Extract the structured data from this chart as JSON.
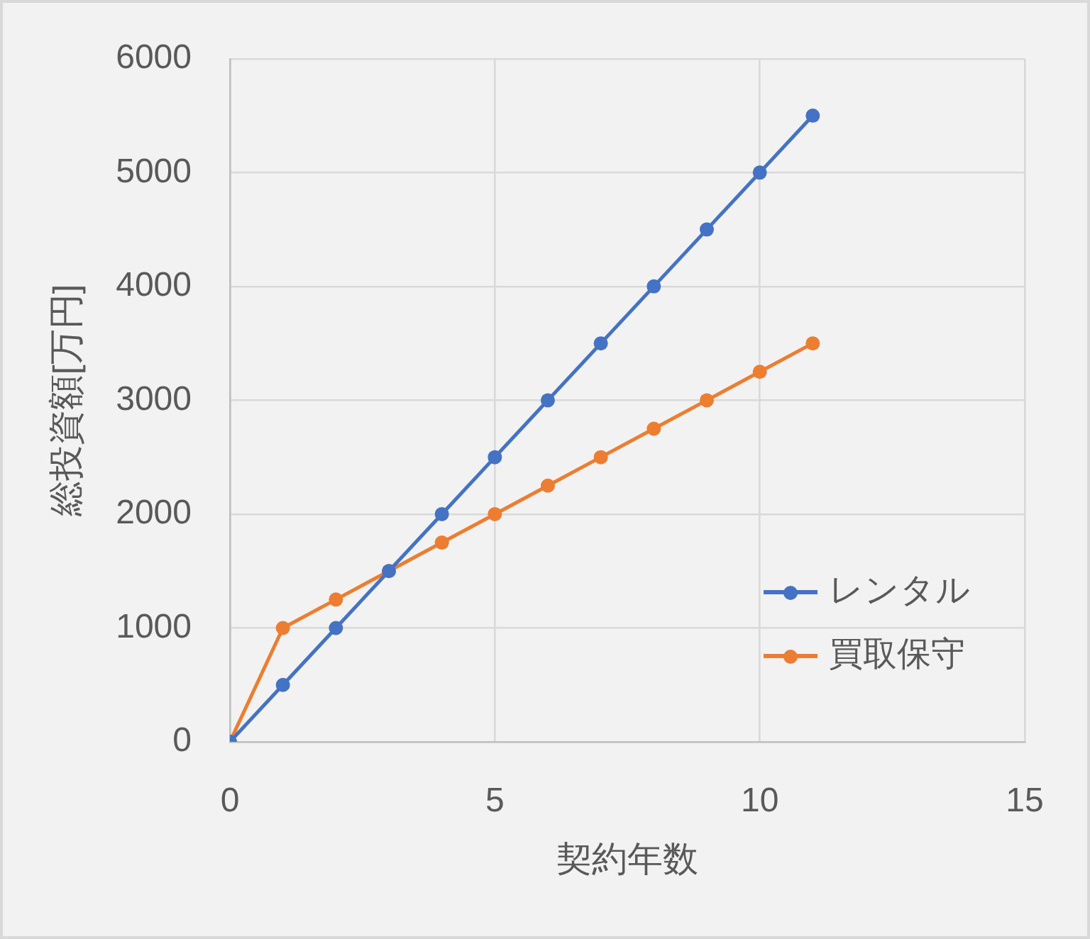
{
  "chart_data": {
    "type": "line",
    "xlabel": "契約年数",
    "ylabel": "総投資額[万円]",
    "x": [
      0,
      1,
      2,
      3,
      4,
      5,
      6,
      7,
      8,
      9,
      10,
      11
    ],
    "series": [
      {
        "name": "レンタル",
        "color": "#4472c4",
        "values": [
          0,
          500,
          1000,
          1500,
          2000,
          2500,
          3000,
          3500,
          4000,
          4500,
          5000,
          5500
        ]
      },
      {
        "name": "買取保守",
        "color": "#ed7d31",
        "values": [
          0,
          1000,
          1250,
          1500,
          1750,
          2000,
          2250,
          2500,
          2750,
          3000,
          3250,
          3500
        ]
      }
    ],
    "xlim": [
      0,
      15
    ],
    "xticks": [
      0,
      5,
      10,
      15
    ],
    "ylim": [
      0,
      6000
    ],
    "yticks": [
      0,
      1000,
      2000,
      3000,
      4000,
      5000,
      6000
    ],
    "grid": true,
    "legend": "bottom right",
    "marker": "circle",
    "line_style": "solid"
  }
}
